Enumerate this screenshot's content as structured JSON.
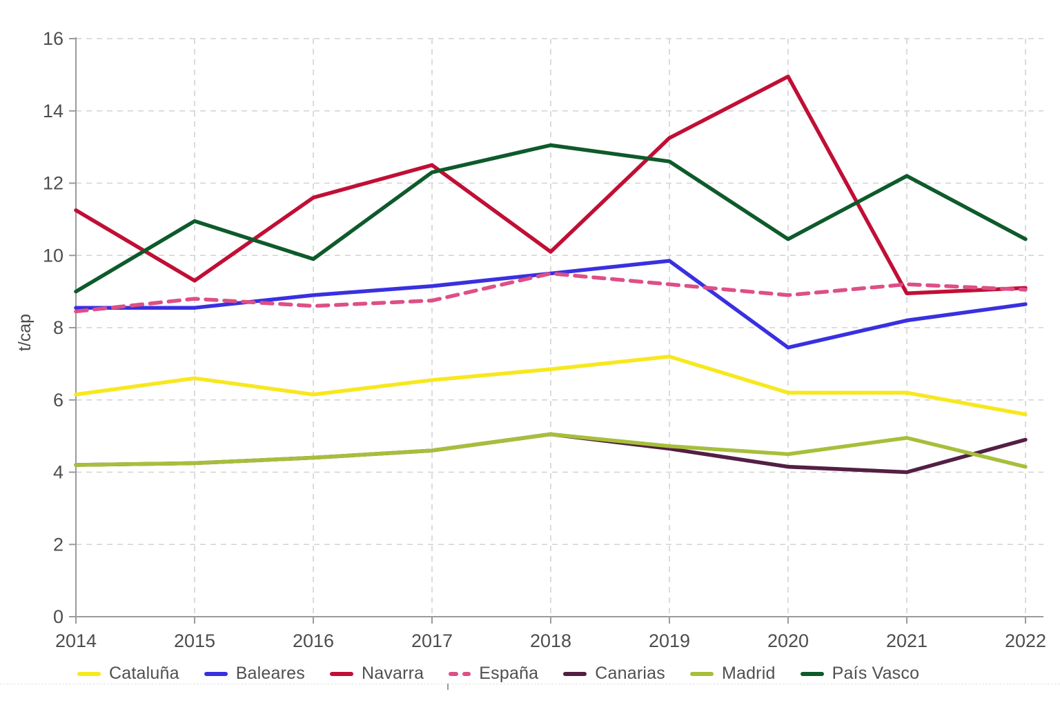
{
  "chart_data": {
    "type": "line",
    "title": "",
    "xlabel": "",
    "ylabel": "t/cap",
    "ylim": [
      0,
      16
    ],
    "yticks": [
      0,
      2,
      4,
      6,
      8,
      10,
      12,
      14,
      16
    ],
    "x": [
      "2014",
      "2015",
      "2016",
      "2017",
      "2018",
      "2019",
      "2020",
      "2021",
      "2022"
    ],
    "grid": true,
    "legend_position": "bottom",
    "series": [
      {
        "name": "Cataluña",
        "color": "#f7e81f",
        "dash": false,
        "values": [
          6.15,
          6.6,
          6.15,
          6.55,
          6.85,
          7.2,
          6.2,
          6.2,
          5.6
        ]
      },
      {
        "name": "Baleares",
        "color": "#3930e0",
        "dash": false,
        "values": [
          8.55,
          8.55,
          8.9,
          9.15,
          9.5,
          9.85,
          7.45,
          8.2,
          8.65
        ]
      },
      {
        "name": "Navarra",
        "color": "#c00f35",
        "dash": false,
        "values": [
          11.25,
          9.3,
          11.6,
          12.5,
          10.1,
          13.25,
          14.95,
          8.95,
          9.1
        ]
      },
      {
        "name": "España",
        "color": "#de4f86",
        "dash": true,
        "values": [
          8.45,
          8.8,
          8.6,
          8.75,
          9.5,
          9.2,
          8.9,
          9.2,
          9.05
        ]
      },
      {
        "name": "Canarias",
        "color": "#531f43",
        "dash": false,
        "values": [
          4.2,
          4.25,
          4.4,
          4.6,
          5.05,
          4.65,
          4.15,
          4.0,
          4.9
        ]
      },
      {
        "name": "Madrid",
        "color": "#a6bf3b",
        "dash": false,
        "values": [
          4.2,
          4.25,
          4.4,
          4.6,
          5.05,
          4.72,
          4.5,
          4.95,
          4.15
        ]
      },
      {
        "name": "País Vasco",
        "color": "#0e5a2b",
        "dash": false,
        "values": [
          9.0,
          10.95,
          9.9,
          12.3,
          13.05,
          12.6,
          10.45,
          12.2,
          10.45
        ]
      }
    ],
    "style": {
      "grid_color": "#d2d2d2",
      "axis_color": "#9a9a9a",
      "tick_label_color": "#4d4d4d",
      "legend_text_color": "#4f4f4f"
    }
  }
}
